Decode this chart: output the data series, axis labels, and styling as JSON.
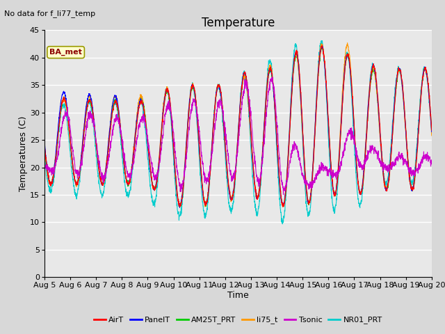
{
  "title": "Temperature",
  "xlabel": "Time",
  "ylabel": "Temperatures (C)",
  "note": "No data for f_li77_temp",
  "legend_label": "BA_met",
  "ylim": [
    0,
    45
  ],
  "yticks": [
    0,
    5,
    10,
    15,
    20,
    25,
    30,
    35,
    40,
    45
  ],
  "xtick_labels": [
    "Aug 5",
    "Aug 6",
    "Aug 7",
    "Aug 8",
    "Aug 9",
    "Aug 10",
    "Aug 11",
    "Aug 12",
    "Aug 13",
    "Aug 14",
    "Aug 15",
    "Aug 16",
    "Aug 17",
    "Aug 18",
    "Aug 19",
    "Aug 20"
  ],
  "series_colors": {
    "AirT": "#ff0000",
    "PanelT": "#0000ff",
    "AM25T_PRT": "#00cc00",
    "li75_t": "#ff9900",
    "Tsonic": "#cc00cc",
    "NR01_PRT": "#00cccc"
  },
  "bg_color": "#d8d8d8",
  "plot_bg_color": "#e8e8e8",
  "grid_color": "#ffffff",
  "title_fontsize": 12,
  "axis_fontsize": 9,
  "tick_fontsize": 8
}
